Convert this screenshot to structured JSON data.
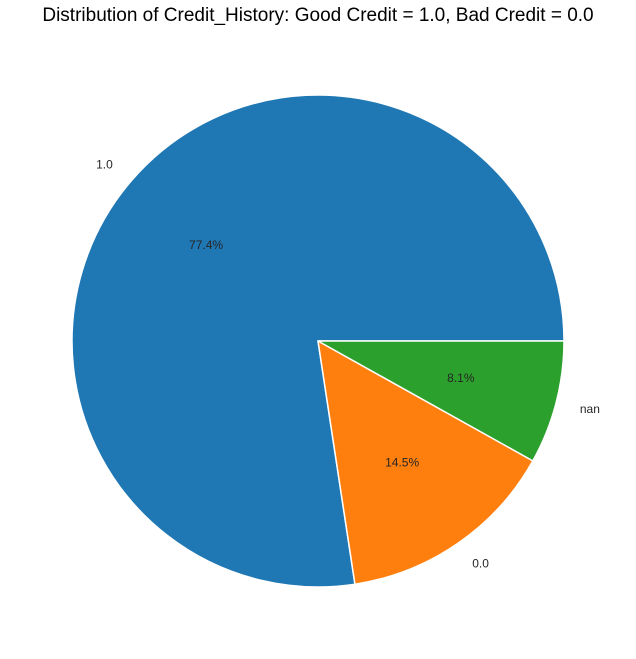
{
  "chart_data": {
    "type": "pie",
    "title": "Distribution of Credit_History: Good Credit = 1.0, Bad Credit = 0.0",
    "categories": [
      "1.0",
      "0.0",
      "nan"
    ],
    "values": [
      77.4,
      14.5,
      8.1
    ],
    "pct_labels": [
      "77.4%",
      "14.5%",
      "8.1%"
    ],
    "colors": [
      "#1f77b4",
      "#ff7f0e",
      "#2ca02c"
    ],
    "edge_color": "#ffffff",
    "start_angle_deg": 0,
    "direction": "counterclockwise",
    "legend": "none"
  }
}
